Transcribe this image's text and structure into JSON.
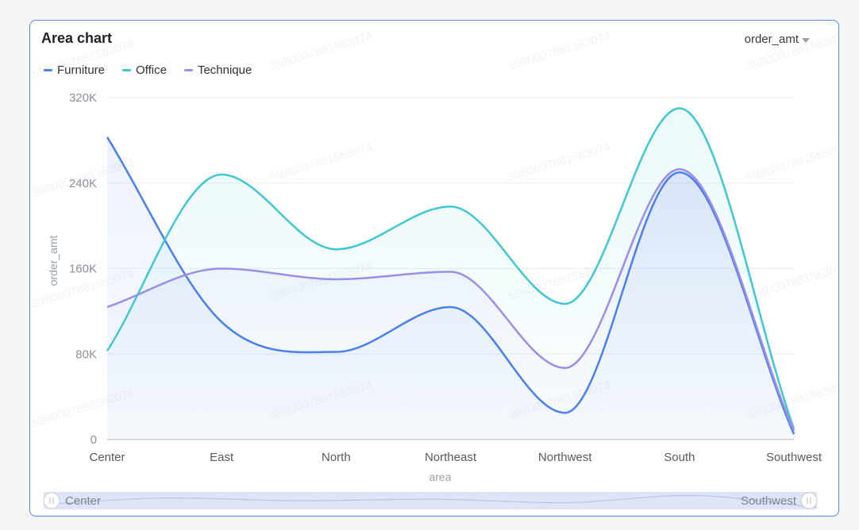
{
  "title": "Area chart",
  "metric_selector": {
    "value": "order_amt",
    "icon": "caret-down-icon"
  },
  "watermark": "5980007881563074",
  "chart_data": {
    "type": "area",
    "title": "Area chart",
    "xlabel": "area",
    "ylabel": "order_amt",
    "categories": [
      "Center",
      "East",
      "North",
      "Northeast",
      "Northwest",
      "South",
      "Southwest"
    ],
    "y_ticks": [
      "0",
      "80K",
      "160K",
      "240K",
      "320K"
    ],
    "ylim": [
      0,
      320000
    ],
    "grid": true,
    "legend_position": "top-left",
    "smooth": true,
    "series": [
      {
        "name": "Furniture",
        "color": "#4a7ff0",
        "values": [
          283000,
          110000,
          82000,
          124000,
          25000,
          250000,
          5000
        ]
      },
      {
        "name": "Office",
        "color": "#3ec8d4",
        "values": [
          83000,
          248000,
          178000,
          218000,
          127000,
          310000,
          10000
        ]
      },
      {
        "name": "Technique",
        "color": "#9b8ee8",
        "values": [
          124000,
          160000,
          150000,
          157000,
          67000,
          253000,
          8000
        ]
      }
    ],
    "slider": {
      "start_label": "Center",
      "end_label": "Southwest",
      "start": 0,
      "end": 1
    }
  }
}
